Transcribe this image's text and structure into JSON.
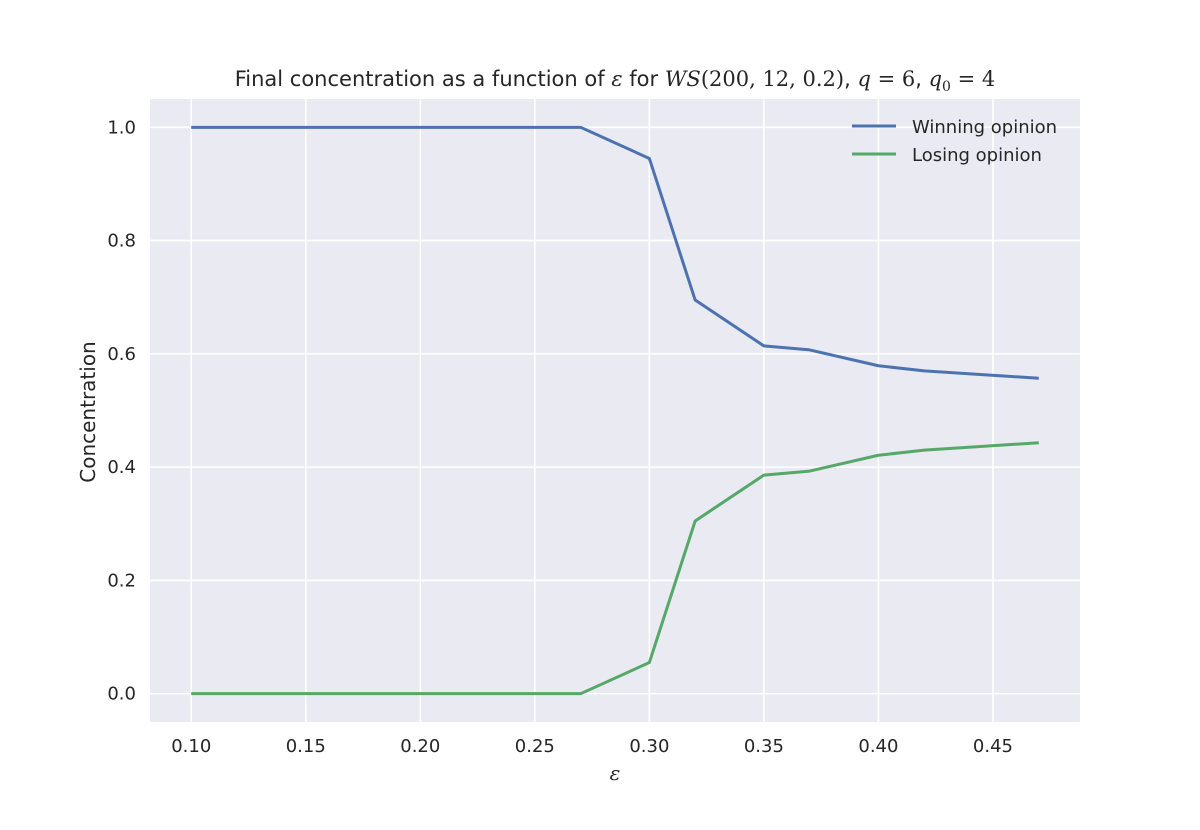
{
  "chart_data": {
    "type": "line",
    "title": "Final concentration as a function of ε for WS(200, 12, 0.2), q = 6, q₀ = 4",
    "title_parts": {
      "prefix": "Final concentration as a function of ",
      "epsilon": "ε",
      "for_text": " for ",
      "ws": "WS",
      "ws_args": "(200, 12, 0.2)",
      "sep1": ", ",
      "q": "q",
      "q_eq": " = 6",
      "sep2": ", ",
      "q0": "q",
      "q0_sub": "0",
      "q0_eq": " = 4"
    },
    "xlabel": "ε",
    "ylabel": "Concentration",
    "xlim": [
      0.082,
      0.488
    ],
    "ylim": [
      -0.05,
      1.05
    ],
    "x_ticks": [
      0.1,
      0.15,
      0.2,
      0.25,
      0.3,
      0.35,
      0.4,
      0.45
    ],
    "x_tick_labels": [
      "0.10",
      "0.15",
      "0.20",
      "0.25",
      "0.30",
      "0.35",
      "0.40",
      "0.45"
    ],
    "y_ticks": [
      0.0,
      0.2,
      0.4,
      0.6,
      0.8,
      1.0
    ],
    "y_tick_labels": [
      "0.0",
      "0.2",
      "0.4",
      "0.6",
      "0.8",
      "1.0"
    ],
    "grid": true,
    "legend_position": "top-right",
    "x": [
      0.1,
      0.27,
      0.3,
      0.32,
      0.35,
      0.37,
      0.4,
      0.42,
      0.47
    ],
    "series": [
      {
        "name": "Winning opinion",
        "color": "#4c72b0",
        "values": [
          1.0,
          1.0,
          0.945,
          0.695,
          0.614,
          0.607,
          0.579,
          0.57,
          0.557
        ]
      },
      {
        "name": "Losing opinion",
        "color": "#55a868",
        "values": [
          0.0,
          0.0,
          0.055,
          0.305,
          0.386,
          0.393,
          0.421,
          0.43,
          0.443
        ]
      }
    ],
    "colors": {
      "plot_background": "#eaeaf2",
      "grid": "#ffffff",
      "text": "#262626"
    }
  }
}
